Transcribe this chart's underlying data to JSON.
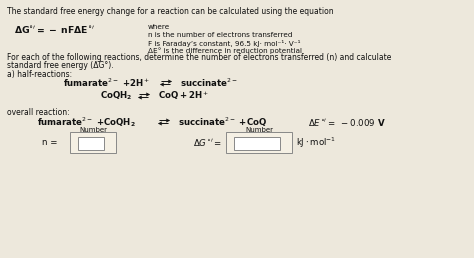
{
  "bg_color": "#ede8dc",
  "text_color": "#111111",
  "title_text": "The standard free energy change for a reaction can be calculated using the equation",
  "where_lines": [
    "where",
    "n is the number of electrons transferred",
    "F is Faraday’s constant, 96.5 kJ· mol⁻¹· V⁻¹",
    "ΔE° is the difference in reduction potential"
  ],
  "for_each_lines": [
    "For each of the following reactions, determine the number of electrons transferred (n) and calculate",
    "standard free energy (ΔG°)."
  ],
  "half_reactions_label": "a) half-reactions:",
  "overall_label": "overall reaction:",
  "delta_E_text": "ΔE°’= − 0.009  V",
  "n_label": "n =",
  "delta_g_label": "ΔG°’=",
  "units_label": "kJ· mol⁻¹",
  "number_label": "Number",
  "box_bg": "#f5f0e4",
  "box_border": "#888888"
}
